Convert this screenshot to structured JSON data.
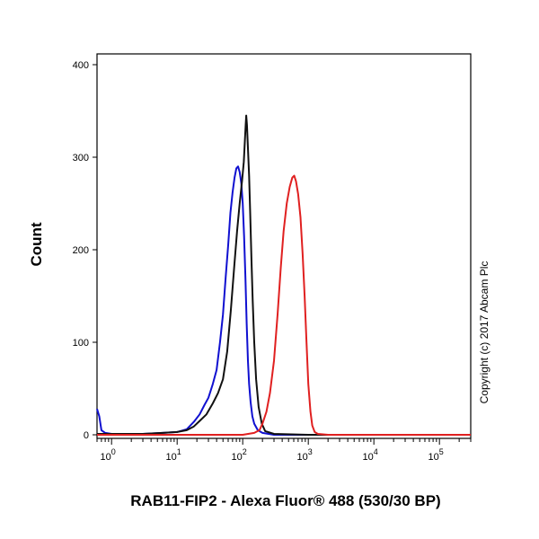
{
  "chart_data": {
    "type": "line",
    "xlabel": "RAB11-FIP2 - Alexa Fluor® 488 (530/30 BP)",
    "ylabel": "Count",
    "x_scale": "log",
    "xlim": [
      0.6,
      300000
    ],
    "ylim": [
      0,
      410
    ],
    "y_ticks": [
      0,
      100,
      200,
      300,
      400
    ],
    "x_ticks": [
      {
        "base": "10",
        "exp": "0",
        "value": 1
      },
      {
        "base": "10",
        "exp": "1",
        "value": 10
      },
      {
        "base": "10",
        "exp": "2",
        "value": 100
      },
      {
        "base": "10",
        "exp": "3",
        "value": 1000
      },
      {
        "base": "10",
        "exp": "4",
        "value": 10000
      },
      {
        "base": "10",
        "exp": "5",
        "value": 100000
      }
    ],
    "grid": false,
    "series": [
      {
        "color": "#1010d0",
        "points": [
          [
            0.6,
            28
          ],
          [
            0.65,
            20
          ],
          [
            0.7,
            5
          ],
          [
            0.8,
            2
          ],
          [
            1,
            1
          ],
          [
            3,
            1
          ],
          [
            6,
            2
          ],
          [
            10,
            3
          ],
          [
            14,
            6
          ],
          [
            18,
            14
          ],
          [
            22,
            22
          ],
          [
            26,
            32
          ],
          [
            30,
            40
          ],
          [
            35,
            55
          ],
          [
            40,
            70
          ],
          [
            45,
            100
          ],
          [
            50,
            130
          ],
          [
            55,
            170
          ],
          [
            60,
            205
          ],
          [
            65,
            240
          ],
          [
            70,
            262
          ],
          [
            75,
            278
          ],
          [
            80,
            288
          ],
          [
            85,
            290
          ],
          [
            90,
            284
          ],
          [
            95,
            272
          ],
          [
            100,
            250
          ],
          [
            105,
            215
          ],
          [
            110,
            170
          ],
          [
            115,
            120
          ],
          [
            120,
            80
          ],
          [
            125,
            55
          ],
          [
            132,
            35
          ],
          [
            140,
            20
          ],
          [
            150,
            12
          ],
          [
            170,
            5
          ],
          [
            200,
            2
          ],
          [
            300,
            0
          ],
          [
            300000,
            0
          ]
        ]
      },
      {
        "color": "#111111",
        "points": [
          [
            0.6,
            1
          ],
          [
            1,
            1
          ],
          [
            3,
            1
          ],
          [
            6,
            2
          ],
          [
            10,
            3
          ],
          [
            14,
            5
          ],
          [
            18,
            9
          ],
          [
            22,
            15
          ],
          [
            28,
            22
          ],
          [
            35,
            34
          ],
          [
            42,
            45
          ],
          [
            50,
            60
          ],
          [
            58,
            90
          ],
          [
            66,
            135
          ],
          [
            74,
            180
          ],
          [
            82,
            220
          ],
          [
            90,
            250
          ],
          [
            98,
            275
          ],
          [
            104,
            295
          ],
          [
            108,
            318
          ],
          [
            111,
            335
          ],
          [
            113,
            345
          ],
          [
            116,
            335
          ],
          [
            120,
            310
          ],
          [
            125,
            280
          ],
          [
            130,
            240
          ],
          [
            136,
            190
          ],
          [
            142,
            145
          ],
          [
            150,
            100
          ],
          [
            160,
            60
          ],
          [
            175,
            30
          ],
          [
            195,
            12
          ],
          [
            220,
            4
          ],
          [
            300,
            1
          ],
          [
            1000,
            0
          ],
          [
            300000,
            0
          ]
        ]
      },
      {
        "color": "#e02020",
        "points": [
          [
            0.6,
            0
          ],
          [
            100,
            0
          ],
          [
            150,
            2
          ],
          [
            180,
            5
          ],
          [
            200,
            12
          ],
          [
            230,
            25
          ],
          [
            260,
            45
          ],
          [
            300,
            80
          ],
          [
            340,
            130
          ],
          [
            380,
            180
          ],
          [
            420,
            220
          ],
          [
            470,
            250
          ],
          [
            520,
            268
          ],
          [
            570,
            278
          ],
          [
            610,
            280
          ],
          [
            650,
            274
          ],
          [
            700,
            260
          ],
          [
            760,
            235
          ],
          [
            820,
            195
          ],
          [
            880,
            150
          ],
          [
            940,
            100
          ],
          [
            1000,
            55
          ],
          [
            1080,
            25
          ],
          [
            1150,
            10
          ],
          [
            1250,
            3
          ],
          [
            1400,
            1
          ],
          [
            2000,
            0
          ],
          [
            300000,
            0
          ]
        ]
      }
    ]
  },
  "watermark": "Copyright (c) 2017 Abcam Plc"
}
